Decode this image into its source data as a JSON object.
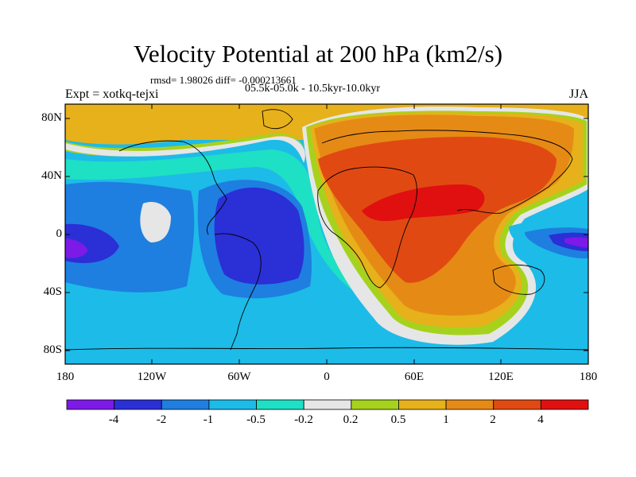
{
  "title": "Velocity Potential at 200 hPa (km2/s)",
  "stats_line": "rmsd= 1.98026 diff= -0.000213661",
  "expt_label": "Expt = xotkq-tejxi",
  "period_label": "05.5k-05.0k - 10.5kyr-10.0kyr",
  "season": "JJA",
  "map": {
    "lat_ticks": [
      "80N",
      "40N",
      "0",
      "40S",
      "80S"
    ],
    "lon_ticks": [
      "180",
      "120W",
      "60W",
      "0",
      "60E",
      "120E",
      "180"
    ]
  },
  "colorbar": {
    "labels": [
      "-4",
      "-2",
      "-1",
      "-0.5",
      "-0.2",
      "0.2",
      "0.5",
      "1",
      "2",
      "4"
    ],
    "colors": [
      "#7d1ae8",
      "#2b2fd6",
      "#1e7fe0",
      "#1dbbe8",
      "#1ee0c4",
      "#e6e6e6",
      "#a6d21e",
      "#e6b11a",
      "#e68a16",
      "#e04a12",
      "#e01010"
    ]
  }
}
